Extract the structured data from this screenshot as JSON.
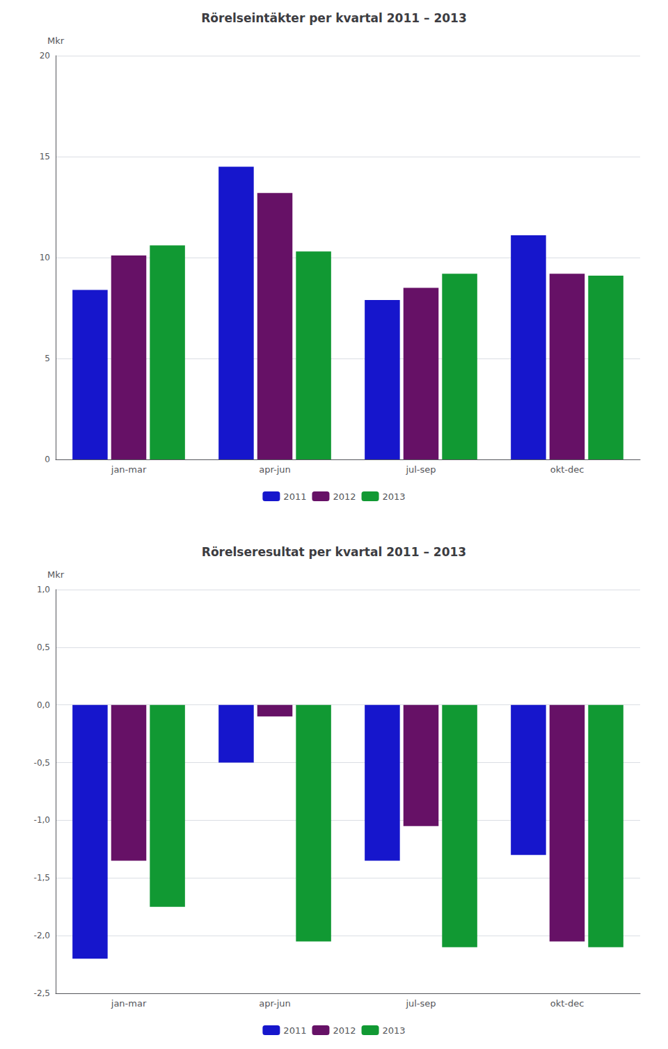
{
  "chart_data": [
    {
      "type": "bar",
      "title": "Rörelseintäkter per kvartal 2011 – 2013",
      "categories": [
        "jan-mar",
        "apr-jun",
        "jul-sep",
        "okt-dec"
      ],
      "series": [
        {
          "name": "2011",
          "color": "#1616CC",
          "values": [
            8.4,
            14.5,
            7.9,
            11.1
          ]
        },
        {
          "name": "2012",
          "color": "#661166",
          "values": [
            10.1,
            13.2,
            8.5,
            9.2
          ]
        },
        {
          "name": "2013",
          "color": "#119933",
          "values": [
            10.6,
            10.3,
            9.2,
            9.1
          ]
        }
      ],
      "ylim": [
        0,
        20
      ],
      "yticks": [
        0,
        5,
        10,
        15,
        20
      ],
      "ylabel": "Mkr",
      "grid": true,
      "legend": "bottom"
    },
    {
      "type": "bar",
      "title": "Rörelseresultat per kvartal 2011 – 2013",
      "categories": [
        "jan-mar",
        "apr-jun",
        "jul-sep",
        "okt-dec"
      ],
      "series": [
        {
          "name": "2011",
          "color": "#1616CC",
          "values": [
            -2.2,
            -0.5,
            -1.35,
            -1.3
          ]
        },
        {
          "name": "2012",
          "color": "#661166",
          "values": [
            -1.35,
            -0.1,
            -1.05,
            -2.05
          ]
        },
        {
          "name": "2013",
          "color": "#119933",
          "values": [
            -1.75,
            -2.05,
            -2.1,
            -2.1
          ]
        }
      ],
      "ylim": [
        -2.5,
        1.0
      ],
      "yticks": [
        {
          "value": -2.5,
          "label": "-2,5"
        },
        {
          "value": -2.0,
          "label": "-2,0"
        },
        {
          "value": -1.5,
          "label": "-1,5"
        },
        {
          "value": -1.0,
          "label": "-1,0"
        },
        {
          "value": -0.5,
          "label": "-0,5"
        },
        {
          "value": 0.0,
          "label": "0,0"
        },
        {
          "value": 0.5,
          "label": "0,5"
        },
        {
          "value": 1.0,
          "label": "1,0"
        }
      ],
      "ylabel": "Mkr",
      "grid": true,
      "legend": "bottom"
    }
  ]
}
